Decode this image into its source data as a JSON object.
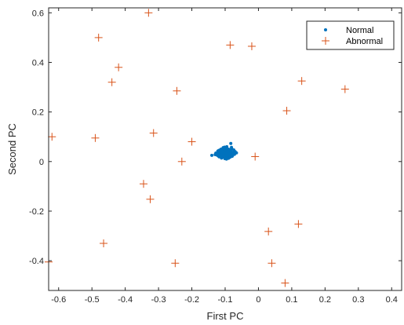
{
  "chart_data": {
    "type": "scatter",
    "xlabel": "First PC",
    "ylabel": "Second PC",
    "xlim": [
      -0.63,
      0.43
    ],
    "ylim": [
      -0.52,
      0.62
    ],
    "xticks": [
      -0.6,
      -0.5,
      -0.4,
      -0.3,
      -0.2,
      -0.1,
      0,
      0.1,
      0.2,
      0.3,
      0.4
    ],
    "xtick_labels": [
      "-0.6",
      "-0.5",
      "-0.4",
      "-0.3",
      "-0.2",
      "-0.1",
      "0",
      "0.1",
      "0.2",
      "0.3",
      "0.4"
    ],
    "yticks": [
      -0.4,
      -0.2,
      0,
      0.2,
      0.4,
      0.6
    ],
    "ytick_labels": [
      "-0.4",
      "-0.2",
      "0",
      "0.2",
      "0.4",
      "0.6"
    ],
    "grid": false,
    "legend_position": "top-right",
    "series": [
      {
        "name": "Normal",
        "marker": "dot",
        "color": "#0072BD",
        "points": [
          [
            -0.1,
            0.035
          ],
          [
            -0.092,
            0.028
          ],
          [
            -0.108,
            0.04
          ],
          [
            -0.095,
            0.02
          ],
          [
            -0.112,
            0.03
          ],
          [
            -0.086,
            0.037
          ],
          [
            -0.098,
            0.045
          ],
          [
            -0.104,
            0.018
          ],
          [
            -0.09,
            0.05
          ],
          [
            -0.116,
            0.025
          ],
          [
            -0.082,
            0.03
          ],
          [
            -0.101,
            0.012
          ],
          [
            -0.109,
            0.047
          ],
          [
            -0.094,
            0.033
          ],
          [
            -0.12,
            0.036
          ],
          [
            -0.078,
            0.024
          ],
          [
            -0.097,
            0.055
          ],
          [
            -0.105,
            0.027
          ],
          [
            -0.088,
            0.016
          ],
          [
            -0.113,
            0.041
          ],
          [
            -0.099,
            0.031
          ],
          [
            -0.093,
            0.042
          ],
          [
            -0.107,
            0.022
          ],
          [
            -0.084,
            0.046
          ],
          [
            -0.118,
            0.019
          ],
          [
            -0.075,
            0.038
          ],
          [
            -0.102,
            0.058
          ],
          [
            -0.096,
            0.01
          ],
          [
            -0.11,
            0.034
          ],
          [
            -0.087,
            0.026
          ],
          [
            -0.125,
            0.03
          ],
          [
            -0.08,
            0.052
          ],
          [
            -0.103,
            0.039
          ],
          [
            -0.091,
            0.021
          ],
          [
            -0.114,
            0.048
          ],
          [
            -0.072,
            0.029
          ],
          [
            -0.099,
            0.015
          ],
          [
            -0.106,
            0.053
          ],
          [
            -0.089,
            0.035
          ],
          [
            -0.121,
            0.023
          ],
          [
            -0.083,
            0.043
          ],
          [
            -0.1,
            0.026
          ],
          [
            -0.095,
            0.06
          ],
          [
            -0.111,
            0.014
          ],
          [
            -0.077,
            0.033
          ],
          [
            -0.13,
            0.028
          ],
          [
            -0.093,
            0.037
          ],
          [
            -0.104,
            0.044
          ],
          [
            -0.086,
            0.022
          ],
          [
            -0.117,
            0.039
          ],
          [
            -0.098,
            0.049
          ],
          [
            -0.09,
            0.013
          ],
          [
            -0.109,
            0.029
          ],
          [
            -0.081,
            0.057
          ],
          [
            -0.122,
            0.042
          ],
          [
            -0.07,
            0.04
          ],
          [
            -0.101,
            0.036
          ],
          [
            -0.094,
            0.024
          ],
          [
            -0.112,
            0.05
          ],
          [
            -0.085,
            0.018
          ],
          [
            -0.097,
            0.04
          ],
          [
            -0.107,
            0.032
          ],
          [
            -0.092,
            0.047
          ],
          [
            -0.115,
            0.027
          ],
          [
            -0.088,
            0.041
          ],
          [
            -0.128,
            0.034
          ],
          [
            -0.079,
            0.021
          ],
          [
            -0.103,
            0.051
          ],
          [
            -0.096,
            0.029
          ],
          [
            -0.11,
            0.017
          ],
          [
            -0.084,
            0.036
          ],
          [
            -0.119,
            0.045
          ],
          [
            -0.1,
            0.023
          ],
          [
            -0.091,
            0.039
          ],
          [
            -0.106,
            0.056
          ],
          [
            -0.074,
            0.047
          ],
          [
            -0.113,
            0.033
          ],
          [
            -0.098,
            0.019
          ],
          [
            -0.087,
            0.044
          ],
          [
            -0.124,
            0.026
          ],
          [
            -0.102,
            0.043
          ],
          [
            -0.095,
            0.031
          ],
          [
            -0.108,
            0.025
          ],
          [
            -0.082,
            0.049
          ],
          [
            -0.116,
            0.037
          ],
          [
            -0.089,
            0.028
          ],
          [
            -0.099,
            0.054
          ],
          [
            -0.105,
            0.036
          ],
          [
            -0.093,
            0.015
          ],
          [
            -0.111,
            0.044
          ],
          [
            -0.08,
            0.026
          ],
          [
            -0.12,
            0.032
          ],
          [
            -0.097,
            0.046
          ],
          [
            -0.086,
            0.033
          ],
          [
            -0.114,
            0.021
          ],
          [
            -0.083,
            0.073
          ],
          [
            -0.101,
            0.048
          ],
          [
            -0.14,
            0.025
          ],
          [
            -0.066,
            0.035
          ],
          [
            -0.109,
            0.038
          ]
        ]
      },
      {
        "name": "Abnormal",
        "marker": "plus",
        "color": "#D95319",
        "points": [
          [
            -0.33,
            0.6
          ],
          [
            -0.48,
            0.5
          ],
          [
            -0.085,
            0.47
          ],
          [
            -0.02,
            0.465
          ],
          [
            -0.42,
            0.38
          ],
          [
            -0.44,
            0.32
          ],
          [
            0.13,
            0.325
          ],
          [
            -0.245,
            0.285
          ],
          [
            0.26,
            0.292
          ],
          [
            0.085,
            0.205
          ],
          [
            -0.62,
            0.1
          ],
          [
            -0.49,
            0.095
          ],
          [
            -0.315,
            0.115
          ],
          [
            -0.2,
            0.08
          ],
          [
            -0.01,
            0.02
          ],
          [
            -0.23,
            0.0
          ],
          [
            -0.345,
            -0.09
          ],
          [
            -0.325,
            -0.152
          ],
          [
            0.03,
            -0.282
          ],
          [
            0.12,
            -0.252
          ],
          [
            -0.465,
            -0.33
          ],
          [
            -0.63,
            -0.405
          ],
          [
            -0.25,
            -0.41
          ],
          [
            0.04,
            -0.41
          ],
          [
            0.08,
            -0.49
          ]
        ]
      }
    ]
  }
}
